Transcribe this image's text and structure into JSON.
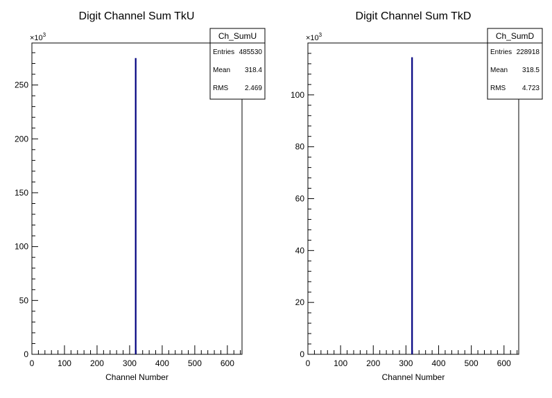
{
  "chart_data": [
    {
      "type": "bar",
      "title": "Digit Channel Sum TkU",
      "xlabel": "Channel Number",
      "ylabel": "",
      "xlim": [
        0,
        645
      ],
      "ylim": [
        0,
        289000
      ],
      "x_ticks": [
        0,
        100,
        200,
        300,
        400,
        500,
        600
      ],
      "y_ticks": [
        0,
        50,
        100,
        150,
        200,
        250
      ],
      "y_multiplier": "×10",
      "y_multiplier_exp": "3",
      "series": [
        {
          "x": [
            318.4
          ],
          "values": [
            275000
          ]
        }
      ],
      "stats": {
        "name": "Ch_SumU",
        "rows": [
          {
            "label": "Entries",
            "value": "485530"
          },
          {
            "label": "Mean",
            "value": "318.4"
          },
          {
            "label": "RMS",
            "value": "2.469"
          }
        ]
      },
      "bar_color": "#000080"
    },
    {
      "type": "bar",
      "title": "Digit Channel Sum TkD",
      "xlabel": "Channel Number",
      "ylabel": "",
      "xlim": [
        0,
        645
      ],
      "ylim": [
        0,
        120000
      ],
      "x_ticks": [
        0,
        100,
        200,
        300,
        400,
        500,
        600
      ],
      "y_ticks": [
        0,
        20,
        40,
        60,
        80,
        100
      ],
      "y_multiplier": "×10",
      "y_multiplier_exp": "3",
      "series": [
        {
          "x": [
            318.5
          ],
          "values": [
            114500
          ]
        }
      ],
      "stats": {
        "name": "Ch_SumD",
        "rows": [
          {
            "label": "Entries",
            "value": "228918"
          },
          {
            "label": "Mean",
            "value": "318.5"
          },
          {
            "label": "RMS",
            "value": "4.723"
          }
        ]
      },
      "bar_color": "#000080"
    }
  ]
}
